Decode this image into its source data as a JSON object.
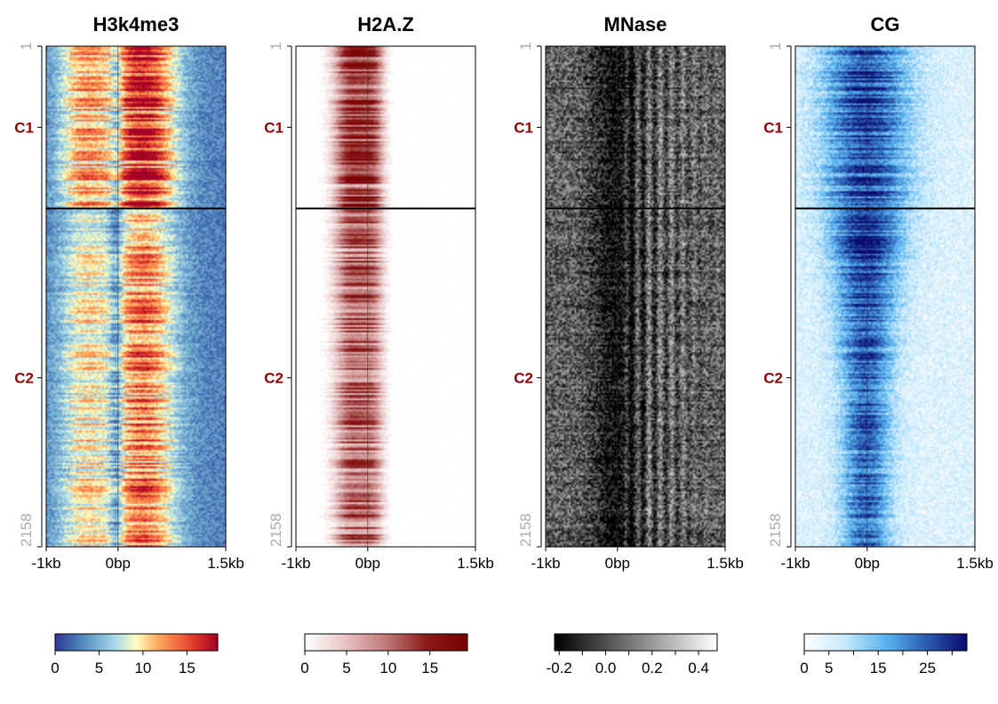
{
  "chart_data": [
    {
      "type": "heatmap",
      "title": "H3k4me3",
      "row_range": [
        1,
        2158
      ],
      "row_labels": [
        {
          "label": "1",
          "row": 1
        },
        {
          "label": "2158",
          "row": 2158
        }
      ],
      "clusters": [
        {
          "name": "C1",
          "start": 1,
          "end": 700
        },
        {
          "name": "C2",
          "start": 701,
          "end": 2158
        }
      ],
      "x_ticks": [
        {
          "label": "-1kb",
          "bp": -1000
        },
        {
          "label": "0bp",
          "bp": 0
        },
        {
          "label": "1.5kb",
          "bp": 1500
        }
      ],
      "xlim": [
        -1000,
        1500
      ],
      "colorbar": {
        "range": [
          0,
          18.5
        ],
        "ticks": [
          0,
          5,
          10,
          15
        ],
        "colors": [
          "#313695",
          "#4575b4",
          "#74add1",
          "#abd9e9",
          "#ffffbf",
          "#fdae61",
          "#f46d43",
          "#d73027",
          "#a50026"
        ]
      },
      "pattern": "promoter"
    },
    {
      "type": "heatmap",
      "title": "H2A.Z",
      "row_range": [
        1,
        2158
      ],
      "row_labels": [
        {
          "label": "1",
          "row": 1
        },
        {
          "label": "2158",
          "row": 2158
        }
      ],
      "clusters": [
        {
          "name": "C1",
          "start": 1,
          "end": 700
        },
        {
          "name": "C2",
          "start": 701,
          "end": 2158
        }
      ],
      "x_ticks": [
        {
          "label": "-1kb",
          "bp": -1000
        },
        {
          "label": "0bp",
          "bp": 0
        },
        {
          "label": "1.5kb",
          "bp": 1500
        }
      ],
      "xlim": [
        -1000,
        1500
      ],
      "colorbar": {
        "range": [
          0,
          19.5
        ],
        "ticks": [
          0,
          5,
          10,
          15
        ],
        "colors": [
          "#ffffff",
          "#e8c4c4",
          "#c07878",
          "#8b1a1a",
          "#7a0000"
        ]
      },
      "pattern": "flank"
    },
    {
      "type": "heatmap",
      "title": "MNase",
      "row_range": [
        1,
        2158
      ],
      "row_labels": [
        {
          "label": "1",
          "row": 1
        },
        {
          "label": "2158",
          "row": 2158
        }
      ],
      "clusters": [
        {
          "name": "C1",
          "start": 1,
          "end": 700
        },
        {
          "name": "C2",
          "start": 701,
          "end": 2158
        }
      ],
      "x_ticks": [
        {
          "label": "-1kb",
          "bp": -1000
        },
        {
          "label": "0bp",
          "bp": 0
        },
        {
          "label": "1.5kb",
          "bp": 1500
        }
      ],
      "xlim": [
        -1000,
        1500
      ],
      "colorbar": {
        "range": [
          -0.22,
          0.48
        ],
        "ticks": [
          -0.2,
          0.0,
          0.2,
          0.4
        ],
        "tick_labels": [
          "-0.2",
          "0.0",
          "0.2",
          "0.4"
        ],
        "minor_ticks": [
          -0.1,
          0.1,
          0.3
        ],
        "colors": [
          "#000000",
          "#555555",
          "#aaaaaa",
          "#ffffff"
        ]
      },
      "pattern": "nucleosome"
    },
    {
      "type": "heatmap",
      "title": "CG",
      "row_range": [
        1,
        2158
      ],
      "row_labels": [
        {
          "label": "1",
          "row": 1
        },
        {
          "label": "2158",
          "row": 2158
        }
      ],
      "clusters": [
        {
          "name": "C1",
          "start": 1,
          "end": 700
        },
        {
          "name": "C2",
          "start": 701,
          "end": 2158
        }
      ],
      "x_ticks": [
        {
          "label": "-1kb",
          "bp": -1000
        },
        {
          "label": "0bp",
          "bp": 0
        },
        {
          "label": "1.5kb",
          "bp": 1500
        }
      ],
      "xlim": [
        -1000,
        1500
      ],
      "colorbar": {
        "range": [
          0,
          33
        ],
        "ticks": [
          0,
          5,
          15,
          25
        ],
        "minor_ticks": [
          10,
          20,
          30
        ],
        "colors": [
          "#ffffff",
          "#c6e9fb",
          "#5ab4f0",
          "#2a5db0",
          "#0a0a70"
        ]
      },
      "pattern": "cpg"
    }
  ]
}
